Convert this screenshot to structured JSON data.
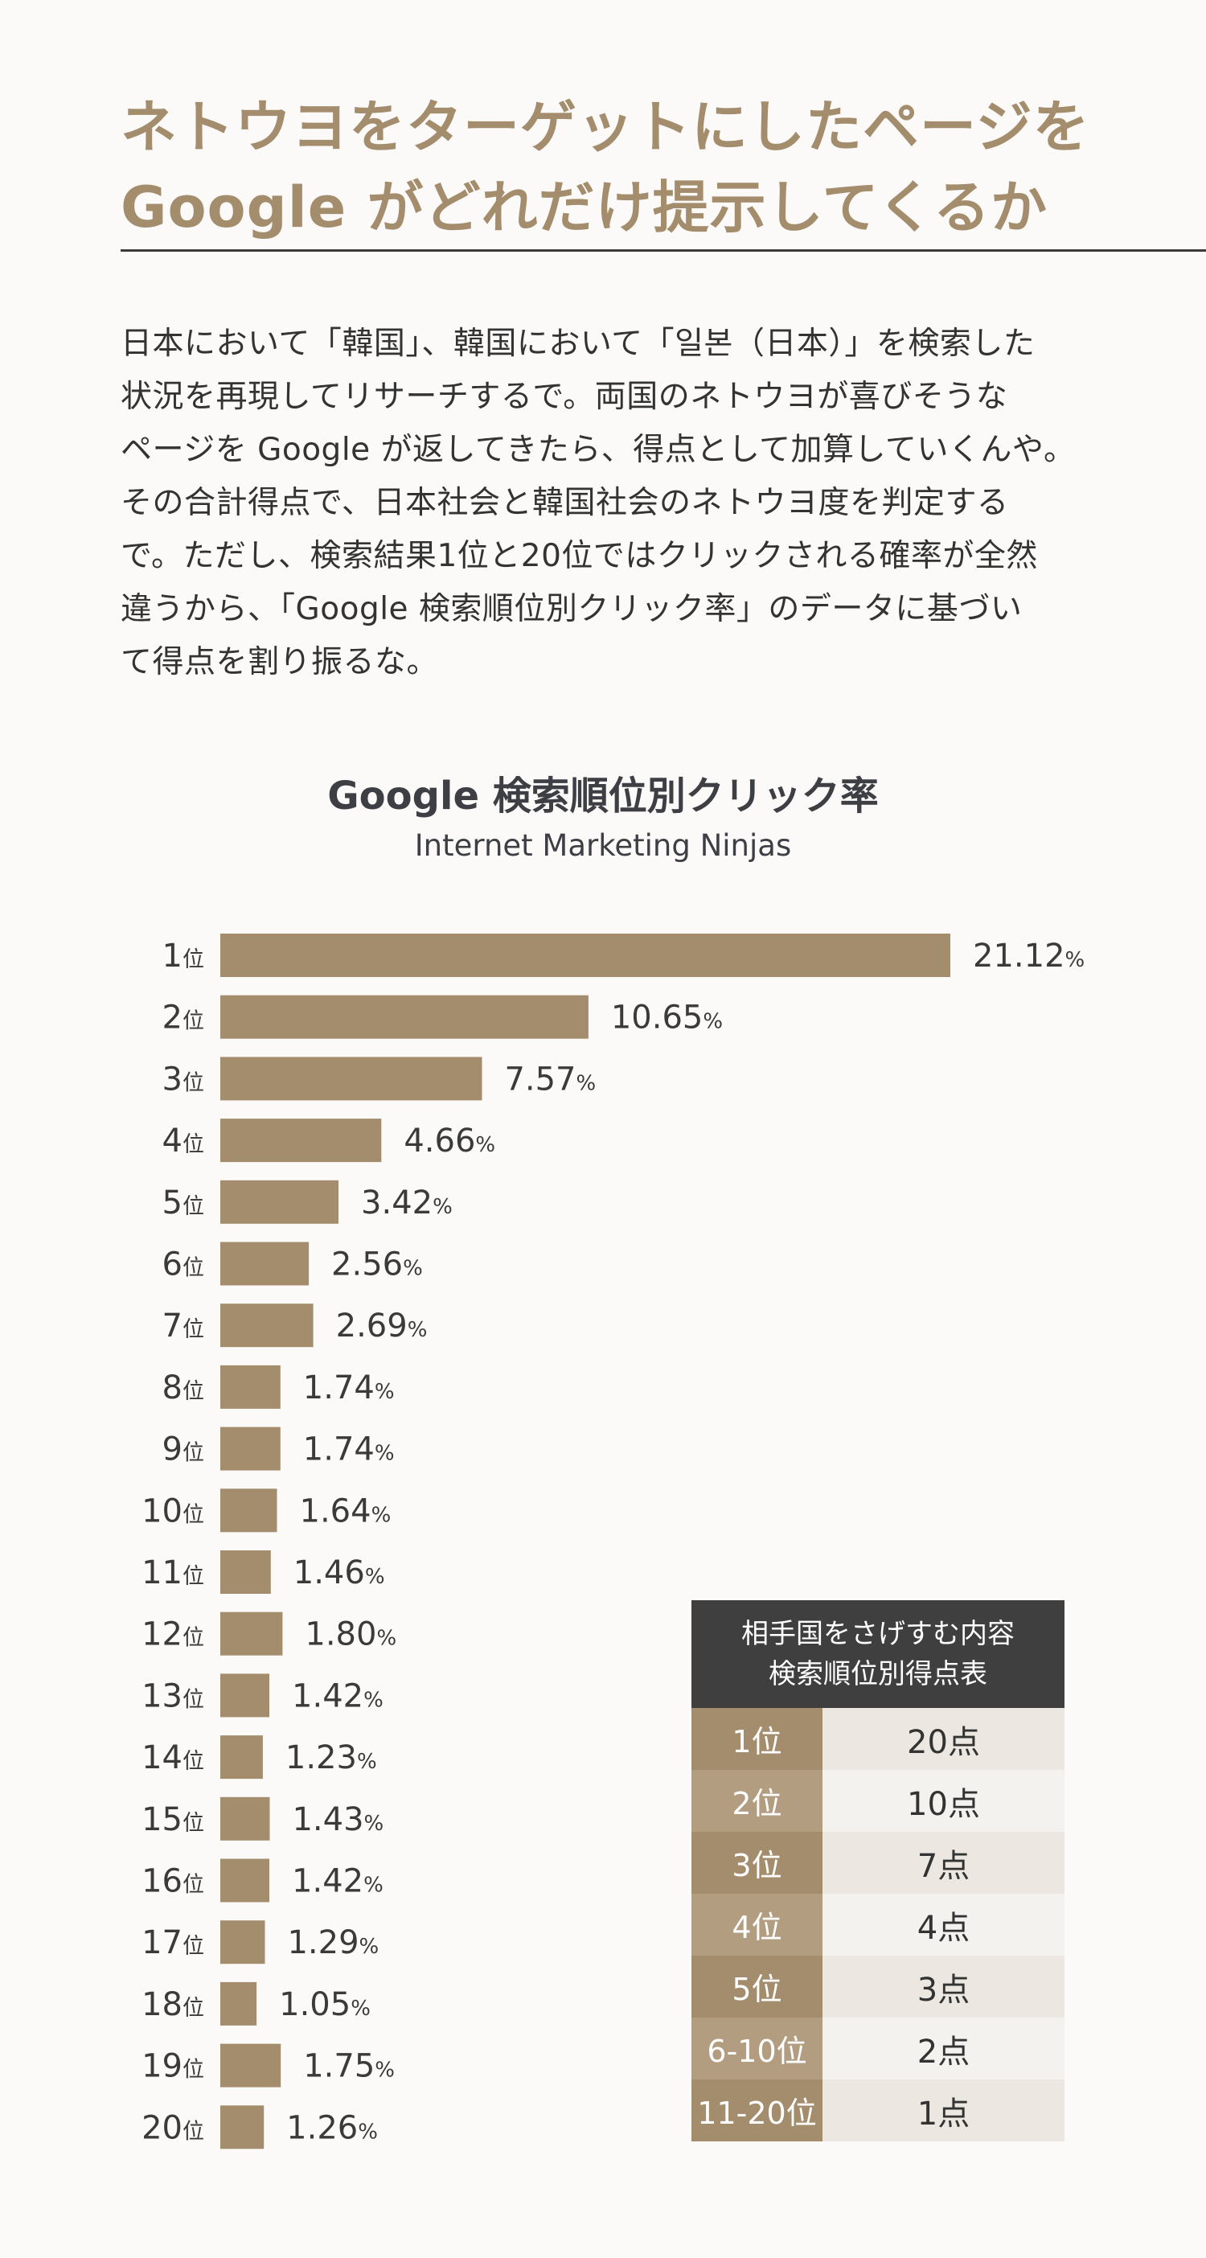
{
  "header": {
    "title_line1": "ネトウヨをターゲットにしたページを",
    "title_line2": "Google がどれだけ提示してくるか"
  },
  "intro": {
    "lines": [
      "日本において「韓国」、韓国において「일본（日本）」を検索した",
      "状況を再現してリサーチするで。両国のネトウヨが喜びそうな",
      "ページを Google が返してきたら、得点として加算していくんや。",
      "その合計得点で、日本社会と韓国社会のネトウヨ度を判定する",
      "で。ただし、検索結果1位と20位ではクリックされる確率が全然",
      "違うから、「Google 検索順位別クリック率」のデータに基づい",
      "て得点を割り振るな。"
    ]
  },
  "chart_data": {
    "type": "bar",
    "orientation": "horizontal",
    "title": "Google 検索順位別クリック率",
    "subtitle": "Internet Marketing Ninjas",
    "categories": [
      "1位",
      "2位",
      "3位",
      "4位",
      "5位",
      "6位",
      "7位",
      "8位",
      "9位",
      "10位",
      "11位",
      "12位",
      "13位",
      "14位",
      "15位",
      "16位",
      "17位",
      "18位",
      "19位",
      "20位"
    ],
    "values": [
      21.12,
      10.65,
      7.57,
      4.66,
      3.42,
      2.56,
      2.69,
      1.74,
      1.74,
      1.64,
      1.46,
      1.8,
      1.42,
      1.23,
      1.43,
      1.42,
      1.29,
      1.05,
      1.75,
      1.26
    ],
    "value_labels": [
      "21.12",
      "10.65",
      "7.57",
      "4.66",
      "3.42",
      "2.56",
      "2.69",
      "1.74",
      "1.74",
      "1.64",
      "1.46",
      "1.80",
      "1.42",
      "1.23",
      "1.43",
      "1.42",
      "1.29",
      "1.05",
      "1.75",
      "1.26"
    ],
    "unit": "%",
    "xlim": [
      0,
      21.12
    ],
    "grid": false,
    "bar_color": "#a48d6d"
  },
  "score_table": {
    "title_line1": "相手国をさげすむ内容",
    "title_line2": "検索順位別得点表",
    "rows": [
      {
        "rank": "1位",
        "points": "20点"
      },
      {
        "rank": "2位",
        "points": "10点"
      },
      {
        "rank": "3位",
        "points": "7点"
      },
      {
        "rank": "4位",
        "points": "4点"
      },
      {
        "rank": "5位",
        "points": "3点"
      },
      {
        "rank": "6-10位",
        "points": "2点"
      },
      {
        "rank": "11-20位",
        "points": "1点"
      }
    ]
  }
}
